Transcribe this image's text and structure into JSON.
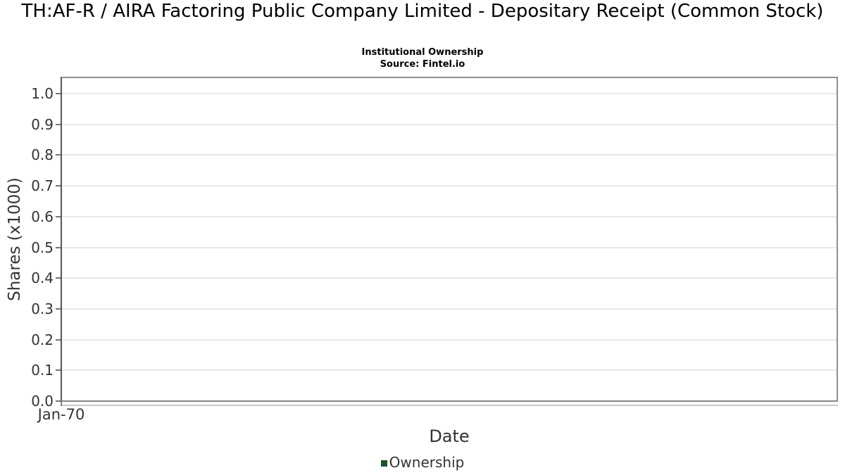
{
  "chart_data": {
    "type": "line",
    "title": "TH:AF-R / AIRA Factoring Public Company Limited - Depositary Receipt (Common Stock)",
    "subtitle": "Institutional Ownership",
    "source": "Source: Fintel.io",
    "xlabel": "Date",
    "ylabel": "Shares (x1000)",
    "ylim": [
      0.0,
      1.05
    ],
    "yticks": [
      0.0,
      0.1,
      0.2,
      0.3,
      0.4,
      0.5,
      0.6,
      0.7,
      0.8,
      0.9,
      1.0
    ],
    "xticks": [
      "Jan-70"
    ],
    "grid": true,
    "legend_position": "bottom",
    "series": [
      {
        "name": "Ownership",
        "color": "#1d5126",
        "values": []
      }
    ],
    "colors": {
      "grid": "#e9e9e9",
      "plot_border": "#909090",
      "y_axis_line": "#555555",
      "x_axis_line": "#c8c8c8",
      "tick_text": "#333333",
      "title_text": "#000000"
    }
  }
}
